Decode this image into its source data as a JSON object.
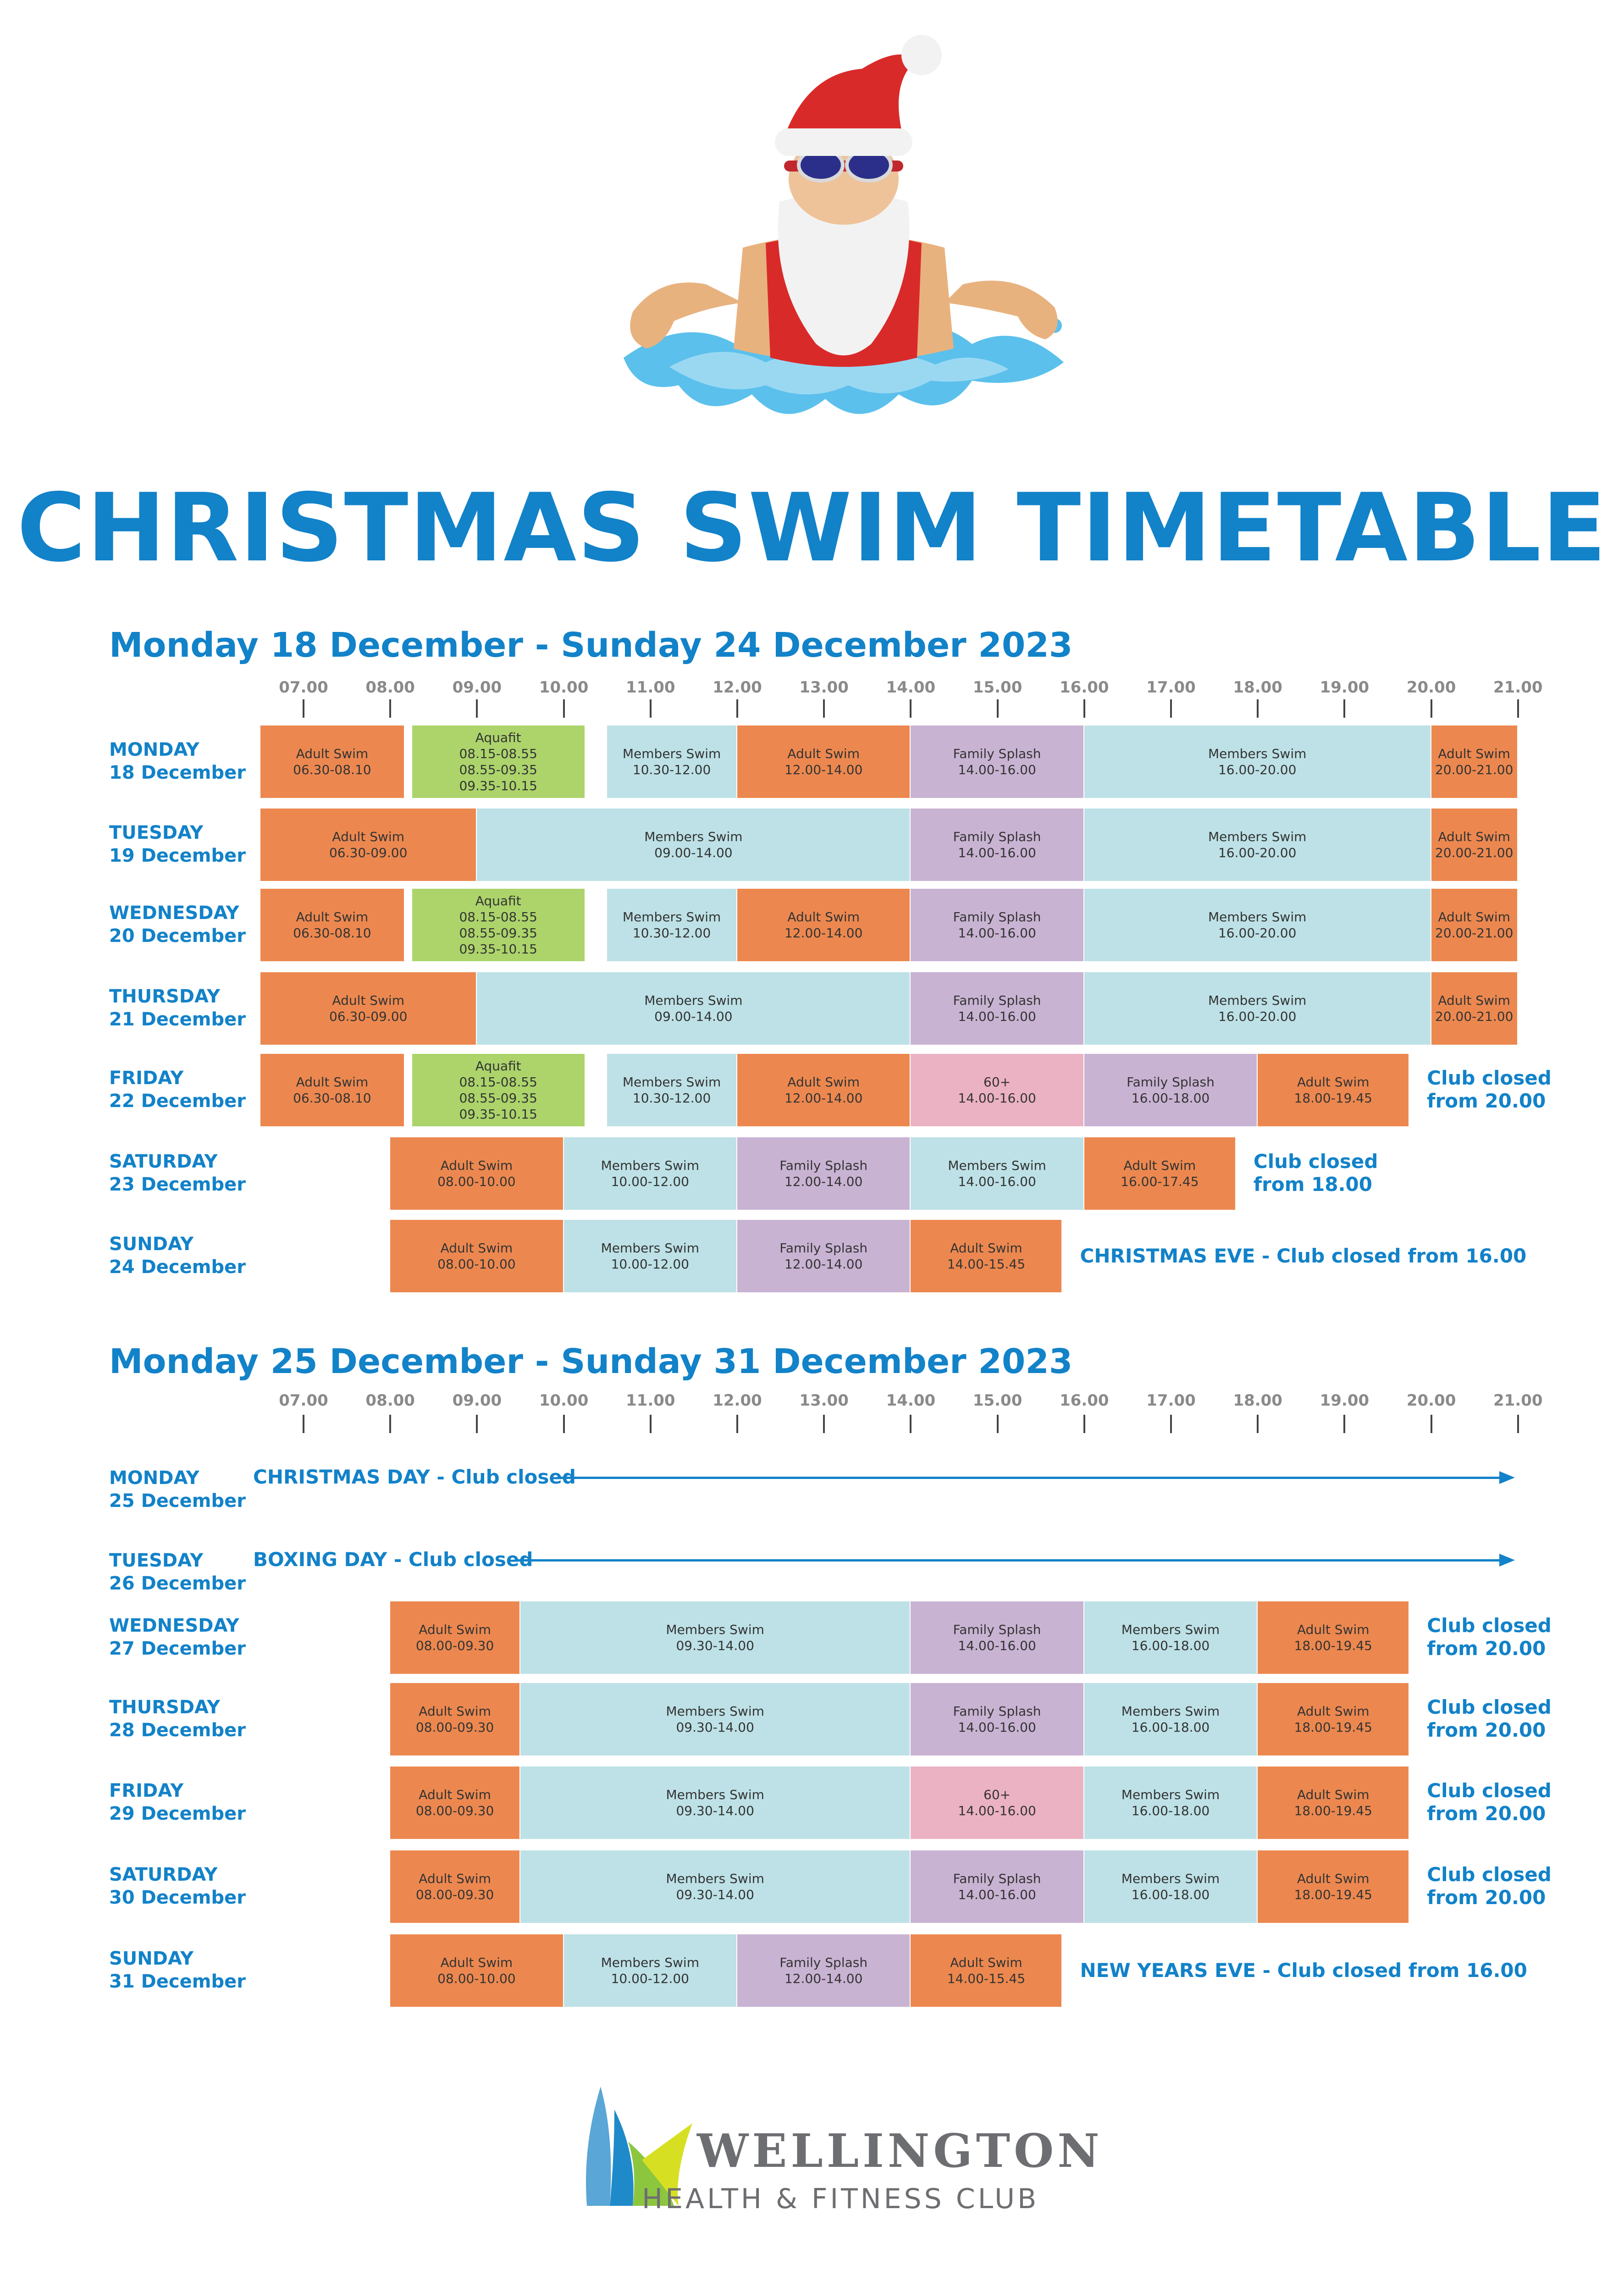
{
  "title": "CHRISTMAS SWIM TIMETABLE",
  "hours": [
    "07.00",
    "08.00",
    "09.00",
    "10.00",
    "11.00",
    "12.00",
    "13.00",
    "14.00",
    "15.00",
    "16.00",
    "17.00",
    "18.00",
    "19.00",
    "20.00",
    "21.00"
  ],
  "weeks": [
    {
      "title": "Monday 18 December - Sunday 24 December 2023",
      "days": [
        {
          "day": "MONDAY",
          "date": "18 December",
          "sessions": [
            {
              "name": "Adult Swim",
              "time": "06.30-08.10",
              "start": 6.5,
              "end": 8.1667,
              "color": "orange"
            },
            {
              "name": "Aquafit",
              "times": [
                "08.15-08.55",
                "08.55-09.35",
                "09.35-10.15"
              ],
              "start": 8.25,
              "end": 10.25,
              "color": "green"
            },
            {
              "name": "Members Swim",
              "time": "10.30-12.00",
              "start": 10.5,
              "end": 12,
              "color": "blue"
            },
            {
              "name": "Adult Swim",
              "time": "12.00-14.00",
              "start": 12,
              "end": 14,
              "color": "orange"
            },
            {
              "name": "Family Splash",
              "time": "14.00-16.00",
              "start": 14,
              "end": 16,
              "color": "purple"
            },
            {
              "name": "Members Swim",
              "time": "16.00-20.00",
              "start": 16,
              "end": 20,
              "color": "blue"
            },
            {
              "name": "Adult Swim",
              "time": "20.00-21.00",
              "start": 20,
              "end": 21,
              "color": "orange"
            }
          ]
        },
        {
          "day": "TUESDAY",
          "date": "19 December",
          "sessions": [
            {
              "name": "Adult Swim",
              "time": "06.30-09.00",
              "start": 6.5,
              "end": 9,
              "color": "orange"
            },
            {
              "name": "Members Swim",
              "time": "09.00-14.00",
              "start": 9,
              "end": 14,
              "color": "blue"
            },
            {
              "name": "Family Splash",
              "time": "14.00-16.00",
              "start": 14,
              "end": 16,
              "color": "purple"
            },
            {
              "name": "Members Swim",
              "time": "16.00-20.00",
              "start": 16,
              "end": 20,
              "color": "blue"
            },
            {
              "name": "Adult Swim",
              "time": "20.00-21.00",
              "start": 20,
              "end": 21,
              "color": "orange"
            }
          ]
        },
        {
          "day": "WEDNESDAY",
          "date": "20 December",
          "sessions": [
            {
              "name": "Adult Swim",
              "time": "06.30-08.10",
              "start": 6.5,
              "end": 8.1667,
              "color": "orange"
            },
            {
              "name": "Aquafit",
              "times": [
                "08.15-08.55",
                "08.55-09.35",
                "09.35-10.15"
              ],
              "start": 8.25,
              "end": 10.25,
              "color": "green"
            },
            {
              "name": "Members Swim",
              "time": "10.30-12.00",
              "start": 10.5,
              "end": 12,
              "color": "blue"
            },
            {
              "name": "Adult Swim",
              "time": "12.00-14.00",
              "start": 12,
              "end": 14,
              "color": "orange"
            },
            {
              "name": "Family Splash",
              "time": "14.00-16.00",
              "start": 14,
              "end": 16,
              "color": "purple"
            },
            {
              "name": "Members Swim",
              "time": "16.00-20.00",
              "start": 16,
              "end": 20,
              "color": "blue"
            },
            {
              "name": "Adult Swim",
              "time": "20.00-21.00",
              "start": 20,
              "end": 21,
              "color": "orange"
            }
          ]
        },
        {
          "day": "THURSDAY",
          "date": "21 December",
          "sessions": [
            {
              "name": "Adult Swim",
              "time": "06.30-09.00",
              "start": 6.5,
              "end": 9,
              "color": "orange"
            },
            {
              "name": "Members Swim",
              "time": "09.00-14.00",
              "start": 9,
              "end": 14,
              "color": "blue"
            },
            {
              "name": "Family Splash",
              "time": "14.00-16.00",
              "start": 14,
              "end": 16,
              "color": "purple"
            },
            {
              "name": "Members Swim",
              "time": "16.00-20.00",
              "start": 16,
              "end": 20,
              "color": "blue"
            },
            {
              "name": "Adult Swim",
              "time": "20.00-21.00",
              "start": 20,
              "end": 21,
              "color": "orange"
            }
          ]
        },
        {
          "day": "FRIDAY",
          "date": "22 December",
          "sessions": [
            {
              "name": "Adult Swim",
              "time": "06.30-08.10",
              "start": 6.5,
              "end": 8.1667,
              "color": "orange"
            },
            {
              "name": "Aquafit",
              "times": [
                "08.15-08.55",
                "08.55-09.35",
                "09.35-10.15"
              ],
              "start": 8.25,
              "end": 10.25,
              "color": "green"
            },
            {
              "name": "Members Swim",
              "time": "10.30-12.00",
              "start": 10.5,
              "end": 12,
              "color": "blue"
            },
            {
              "name": "Adult Swim",
              "time": "12.00-14.00",
              "start": 12,
              "end": 14,
              "color": "orange"
            },
            {
              "name": "60+",
              "time": "14.00-16.00",
              "start": 14,
              "end": 16,
              "color": "pink"
            },
            {
              "name": "Family Splash",
              "time": "16.00-18.00",
              "start": 16,
              "end": 18,
              "color": "purple"
            },
            {
              "name": "Adult Swim",
              "time": "18.00-19.45",
              "start": 18,
              "end": 19.75,
              "color": "orange"
            }
          ],
          "note": [
            "Club closed",
            "from 20.00"
          ]
        },
        {
          "day": "SATURDAY",
          "date": "23 December",
          "sessions": [
            {
              "name": "Adult Swim",
              "time": "08.00-10.00",
              "start": 8,
              "end": 10,
              "color": "orange"
            },
            {
              "name": "Members Swim",
              "time": "10.00-12.00",
              "start": 10,
              "end": 12,
              "color": "blue"
            },
            {
              "name": "Family Splash",
              "time": "12.00-14.00",
              "start": 12,
              "end": 14,
              "color": "purple"
            },
            {
              "name": "Members Swim",
              "time": "14.00-16.00",
              "start": 14,
              "end": 16,
              "color": "blue"
            },
            {
              "name": "Adult Swim",
              "time": "16.00-17.45",
              "start": 16,
              "end": 17.75,
              "color": "orange"
            }
          ],
          "note": [
            "Club closed",
            "from 18.00"
          ]
        },
        {
          "day": "SUNDAY",
          "date": "24 December",
          "sessions": [
            {
              "name": "Adult Swim",
              "time": "08.00-10.00",
              "start": 8,
              "end": 10,
              "color": "orange"
            },
            {
              "name": "Members Swim",
              "time": "10.00-12.00",
              "start": 10,
              "end": 12,
              "color": "blue"
            },
            {
              "name": "Family Splash",
              "time": "12.00-14.00",
              "start": 12,
              "end": 14,
              "color": "purple"
            },
            {
              "name": "Adult Swim",
              "time": "14.00-15.45",
              "start": 14,
              "end": 15.75,
              "color": "orange"
            }
          ],
          "note": [
            "CHRISTMAS EVE - Club closed from 16.00"
          ]
        }
      ]
    },
    {
      "title": "Monday 25 December - Sunday 31 December 2023",
      "days": [
        {
          "day": "MONDAY",
          "date": "25 December",
          "sessions": [],
          "closed": "CHRISTMAS DAY - Club closed"
        },
        {
          "day": "TUESDAY",
          "date": "26 December",
          "sessions": [],
          "closed": "BOXING DAY - Club closed"
        },
        {
          "day": "WEDNESDAY",
          "date": "27 December",
          "sessions": [
            {
              "name": "Adult Swim",
              "time": "08.00-09.30",
              "start": 8,
              "end": 9.5,
              "color": "orange"
            },
            {
              "name": "Members Swim",
              "time": "09.30-14.00",
              "start": 9.5,
              "end": 14,
              "color": "blue"
            },
            {
              "name": "Family Splash",
              "time": "14.00-16.00",
              "start": 14,
              "end": 16,
              "color": "purple"
            },
            {
              "name": "Members Swim",
              "time": "16.00-18.00",
              "start": 16,
              "end": 18,
              "color": "blue"
            },
            {
              "name": "Adult Swim",
              "time": "18.00-19.45",
              "start": 18,
              "end": 19.75,
              "color": "orange"
            }
          ],
          "note": [
            "Club closed",
            "from 20.00"
          ]
        },
        {
          "day": "THURSDAY",
          "date": "28 December",
          "sessions": [
            {
              "name": "Adult Swim",
              "time": "08.00-09.30",
              "start": 8,
              "end": 9.5,
              "color": "orange"
            },
            {
              "name": "Members Swim",
              "time": "09.30-14.00",
              "start": 9.5,
              "end": 14,
              "color": "blue"
            },
            {
              "name": "Family Splash",
              "time": "14.00-16.00",
              "start": 14,
              "end": 16,
              "color": "purple"
            },
            {
              "name": "Members Swim",
              "time": "16.00-18.00",
              "start": 16,
              "end": 18,
              "color": "blue"
            },
            {
              "name": "Adult Swim",
              "time": "18.00-19.45",
              "start": 18,
              "end": 19.75,
              "color": "orange"
            }
          ],
          "note": [
            "Club closed",
            "from 20.00"
          ]
        },
        {
          "day": "FRIDAY",
          "date": "29 December",
          "sessions": [
            {
              "name": "Adult Swim",
              "time": "08.00-09.30",
              "start": 8,
              "end": 9.5,
              "color": "orange"
            },
            {
              "name": "Members Swim",
              "time": "09.30-14.00",
              "start": 9.5,
              "end": 14,
              "color": "blue"
            },
            {
              "name": "60+",
              "time": "14.00-16.00",
              "start": 14,
              "end": 16,
              "color": "pink"
            },
            {
              "name": "Members Swim",
              "time": "16.00-18.00",
              "start": 16,
              "end": 18,
              "color": "blue"
            },
            {
              "name": "Adult Swim",
              "time": "18.00-19.45",
              "start": 18,
              "end": 19.75,
              "color": "orange"
            }
          ],
          "note": [
            "Club closed",
            "from 20.00"
          ]
        },
        {
          "day": "SATURDAY",
          "date": "30 December",
          "sessions": [
            {
              "name": "Adult Swim",
              "time": "08.00-09.30",
              "start": 8,
              "end": 9.5,
              "color": "orange"
            },
            {
              "name": "Members Swim",
              "time": "09.30-14.00",
              "start": 9.5,
              "end": 14,
              "color": "blue"
            },
            {
              "name": "Family Splash",
              "time": "14.00-16.00",
              "start": 14,
              "end": 16,
              "color": "purple"
            },
            {
              "name": "Members Swim",
              "time": "16.00-18.00",
              "start": 16,
              "end": 18,
              "color": "blue"
            },
            {
              "name": "Adult Swim",
              "time": "18.00-19.45",
              "start": 18,
              "end": 19.75,
              "color": "orange"
            }
          ],
          "note": [
            "Club closed",
            "from 20.00"
          ]
        },
        {
          "day": "SUNDAY",
          "date": "31 December",
          "sessions": [
            {
              "name": "Adult Swim",
              "time": "08.00-10.00",
              "start": 8,
              "end": 10,
              "color": "orange"
            },
            {
              "name": "Members Swim",
              "time": "10.00-12.00",
              "start": 10,
              "end": 12,
              "color": "blue"
            },
            {
              "name": "Family Splash",
              "time": "12.00-14.00",
              "start": 12,
              "end": 14,
              "color": "purple"
            },
            {
              "name": "Adult Swim",
              "time": "14.00-15.45",
              "start": 14,
              "end": 15.75,
              "color": "orange"
            }
          ],
          "note": [
            "NEW YEARS EVE - Club closed from 16.00"
          ]
        }
      ]
    }
  ],
  "logo": {
    "name": "WELLINGTON",
    "tagline": "HEALTH & FITNESS CLUB"
  },
  "colors": {
    "orange": "#ec884f",
    "green": "#acd46b",
    "blue": "#bde1e6",
    "purple": "#c9b3d3",
    "pink": "#ebb2c3",
    "title": "#1282c9"
  }
}
